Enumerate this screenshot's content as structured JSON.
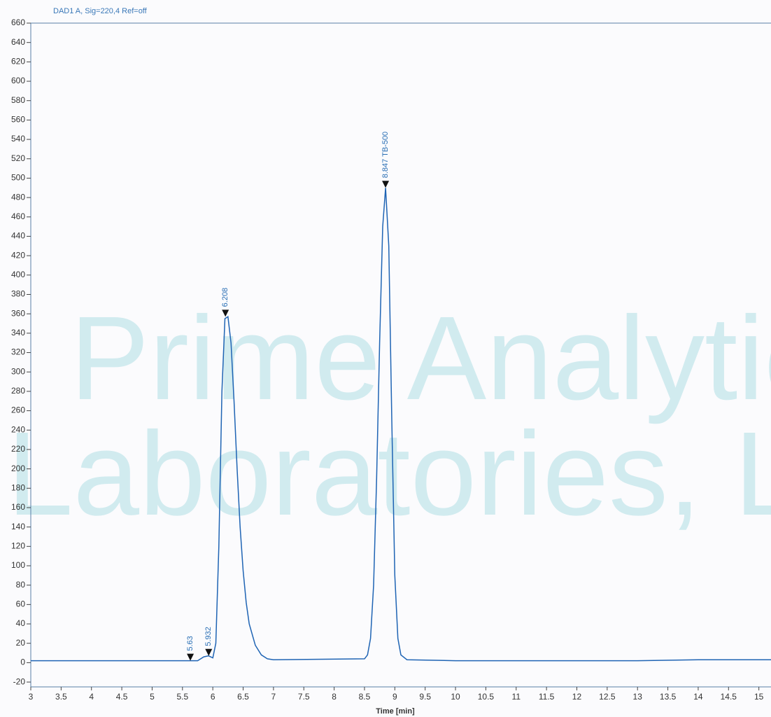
{
  "chart_data": {
    "type": "line",
    "title": "DAD1 A, Sig=220,4 Ref=off",
    "x_label": "Time [min]",
    "watermark": [
      "Prime Analytical",
      "Laboratories, LLC"
    ],
    "xlim": [
      3,
      15.2
    ],
    "ylim": [
      -25,
      660
    ],
    "xticks": [
      3,
      3.5,
      4,
      4.5,
      5,
      5.5,
      6,
      6.5,
      7,
      7.5,
      8,
      8.5,
      9,
      9.5,
      10,
      10.5,
      11,
      11.5,
      12,
      12.5,
      13,
      13.5,
      14,
      14.5,
      15
    ],
    "yticks": [
      -20,
      0,
      20,
      40,
      60,
      80,
      100,
      120,
      140,
      160,
      180,
      200,
      220,
      240,
      260,
      280,
      300,
      320,
      340,
      360,
      380,
      400,
      420,
      440,
      460,
      480,
      500,
      520,
      540,
      560,
      580,
      600,
      620,
      640,
      660
    ],
    "series": [
      {
        "color": "#1f64b4",
        "x": [
          3,
          4.5,
          5.5,
          5.75,
          5.85,
          5.93,
          6.0,
          6.05,
          6.1,
          6.15,
          6.2,
          6.25,
          6.3,
          6.35,
          6.4,
          6.45,
          6.5,
          6.55,
          6.6,
          6.7,
          6.8,
          6.9,
          7.0,
          8.5,
          8.55,
          8.6,
          8.65,
          8.7,
          8.75,
          8.8,
          8.847,
          8.9,
          8.95,
          9.0,
          9.05,
          9.1,
          9.2,
          10,
          12,
          13,
          14,
          15.2
        ],
        "values": [
          2,
          2,
          2,
          2,
          6,
          7,
          5,
          20,
          120,
          280,
          355,
          357,
          330,
          270,
          200,
          140,
          95,
          62,
          40,
          18,
          8,
          4,
          3,
          4,
          8,
          25,
          80,
          190,
          330,
          450,
          490,
          430,
          250,
          90,
          25,
          8,
          3,
          2,
          2,
          2,
          3,
          3
        ]
      }
    ],
    "peaks": [
      {
        "label": "5.63",
        "time": 5.63,
        "height": 2
      },
      {
        "label": "5.932",
        "time": 5.932,
        "height": 7
      },
      {
        "label": "6.208",
        "time": 6.208,
        "height": 357
      },
      {
        "label": "8.847 TB-500",
        "time": 8.847,
        "height": 490
      }
    ]
  }
}
